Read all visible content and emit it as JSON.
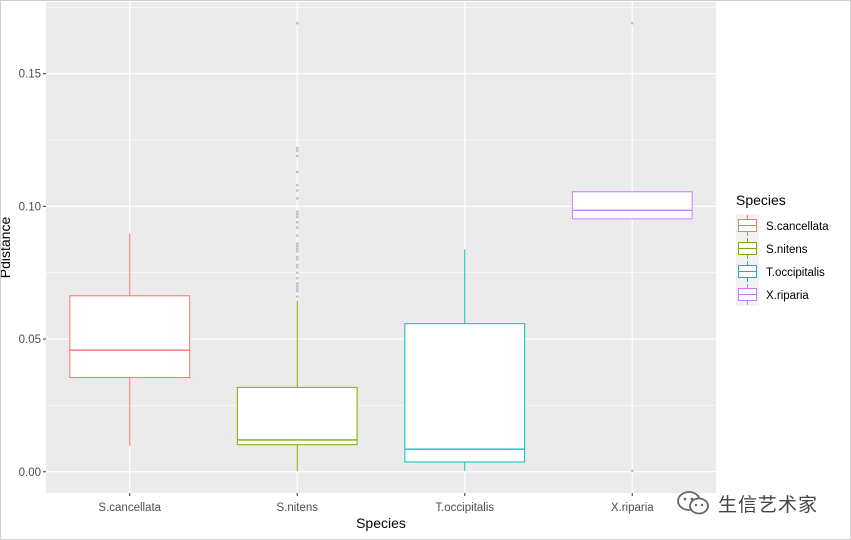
{
  "chart_data": {
    "type": "box",
    "xlabel": "Species",
    "ylabel": "Pdistance",
    "ylim": [
      -0.008,
      0.177
    ],
    "yticks": [
      0.0,
      0.05,
      0.1,
      0.15
    ],
    "ytick_labels": [
      "0.00",
      "0.05",
      "0.10",
      "0.15"
    ],
    "categories": [
      "S.cancellata",
      "S.nitens",
      "T.occipitalis",
      "X.riparia"
    ],
    "legend": {
      "title": "Species",
      "position": "right"
    },
    "grid": true,
    "background": "#ebebeb",
    "gridline_color": "#ffffff",
    "box_fill": "#ffffff",
    "outlier_color": "#bfbfbf",
    "boxes": [
      {
        "name": "S.cancellata",
        "color": "#F8766D",
        "whisker_low": 0.0098,
        "q1": 0.0355,
        "median": 0.0458,
        "q3": 0.0663,
        "whisker_high": 0.0898,
        "outliers": []
      },
      {
        "name": "S.nitens",
        "color": "#7CAE00",
        "whisker_low": 0.0003,
        "q1": 0.0102,
        "median": 0.012,
        "q3": 0.0318,
        "whisker_high": 0.0645,
        "outliers": [
          0.066,
          0.068,
          0.069,
          0.07,
          0.071,
          0.073,
          0.075,
          0.077,
          0.078,
          0.08,
          0.081,
          0.083,
          0.084,
          0.085,
          0.086,
          0.089,
          0.092,
          0.094,
          0.096,
          0.097,
          0.098,
          0.103,
          0.106,
          0.108,
          0.113,
          0.119,
          0.121,
          0.122,
          0.169
        ]
      },
      {
        "name": "T.occipitalis",
        "color": "#00BFC4",
        "whisker_low": 0.0003,
        "q1": 0.0037,
        "median": 0.0085,
        "q3": 0.0558,
        "whisker_high": 0.0838,
        "outliers": []
      },
      {
        "name": "X.riparia",
        "color": "#C77CFF",
        "whisker_low": 0.0953,
        "q1": 0.0953,
        "median": 0.0985,
        "q3": 0.1055,
        "whisker_high": 0.1055,
        "outliers": [
          0.0003,
          0.169
        ]
      }
    ]
  },
  "watermark": {
    "icon": "wechat-icon",
    "text": "生信艺术家"
  }
}
